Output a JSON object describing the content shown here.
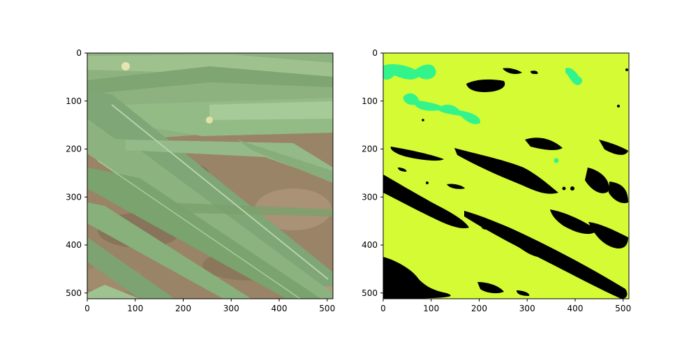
{
  "figure": {
    "panels": [
      {
        "id": "photo",
        "kind": "photograph",
        "content": "close-up of green wheat/grass leaves over brown soil",
        "xticks": [
          "0",
          "100",
          "200",
          "300",
          "400",
          "500"
        ],
        "yticks": [
          "0",
          "100",
          "200",
          "300",
          "400",
          "500"
        ],
        "colors": {
          "leaf": "#86b27c",
          "leaf_light": "#a9c99a",
          "soil": "#9a8468",
          "soil_dark": "#6f5e47",
          "highlight": "#d2e0b8"
        }
      },
      {
        "id": "segmentation",
        "kind": "segmentation-mask",
        "xticks": [
          "0",
          "100",
          "200",
          "300",
          "400",
          "500"
        ],
        "yticks": [
          "0",
          "100",
          "200",
          "300",
          "400",
          "500"
        ],
        "colors": {
          "background_class": "#d4fb34",
          "soil_class": "#000000",
          "highlight_class": "#33f48b"
        }
      }
    ]
  }
}
